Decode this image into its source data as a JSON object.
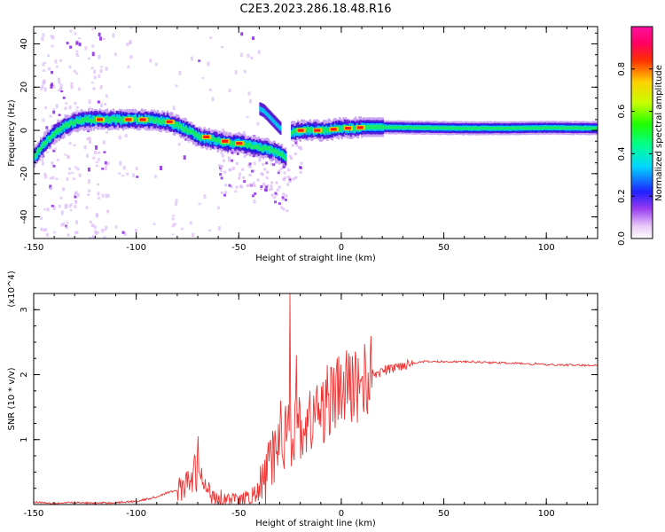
{
  "title": "C2E3.2023.286.18.48.R16",
  "colors": {
    "snr_line": "#ee3333",
    "frame": "#000000"
  },
  "chart_data": [
    {
      "type": "heatmap",
      "xlabel": "Height of straight line (km)",
      "ylabel": "Frequency (Hz)",
      "xlim": [
        -150,
        125
      ],
      "ylim": [
        -50,
        48
      ],
      "x_ticks": [
        "-150",
        "-100",
        "-50",
        "0",
        "50",
        "100"
      ],
      "y_ticks": [
        "-40",
        "-20",
        "0",
        "20",
        "40"
      ],
      "colorbar": {
        "label": "Normalized spectral amplitude",
        "range": [
          0,
          1
        ],
        "ticks": [
          "0.0",
          "0.2",
          "0.4",
          "0.6",
          "0.8"
        ]
      },
      "ridge": {
        "x": [
          -150,
          -145,
          -140,
          -135,
          -130,
          -125,
          -120,
          -115,
          -110,
          -105,
          -100,
          -95,
          -90,
          -85,
          -80,
          -75,
          -70,
          -65,
          -60,
          -55,
          -50,
          -45,
          -40,
          -35,
          -30,
          -27,
          -25,
          -20,
          -15,
          -10,
          -5,
          0,
          5,
          10,
          20,
          40,
          60,
          80,
          100,
          125
        ],
        "y": [
          -12,
          -6,
          -1,
          2,
          4,
          5,
          5,
          5,
          5,
          5,
          5,
          5,
          4.5,
          4,
          2,
          0,
          -3,
          -4,
          -5,
          -6,
          -6,
          -7,
          -8,
          -9,
          -11,
          -13,
          -1,
          0,
          0,
          0,
          0.5,
          1,
          1,
          1.5,
          1.5,
          1.2,
          1,
          1,
          1.2,
          1
        ]
      },
      "branch": {
        "x": [
          -40,
          -38,
          -35,
          -32,
          -30
        ],
        "y": [
          10,
          9,
          6,
          3,
          1
        ]
      }
    },
    {
      "type": "line",
      "xlabel": "Height of straight line (km)",
      "ylabel": "SNR (10 * v/v)",
      "y_multiplier": "(x10^4)",
      "xlim": [
        -150,
        125
      ],
      "ylim": [
        0,
        3.25
      ],
      "x_ticks": [
        "-150",
        "-100",
        "-50",
        "0",
        "50",
        "100"
      ],
      "y_ticks": [
        "1",
        "2",
        "3"
      ],
      "series": [
        {
          "name": "SNR",
          "x": [
            -150,
            -140,
            -130,
            -120,
            -110,
            -100,
            -95,
            -90,
            -85,
            -80,
            -75,
            -72,
            -70,
            -68,
            -65,
            -60,
            -55,
            -50,
            -45,
            -40,
            -37,
            -35,
            -32,
            -30,
            -28,
            -26,
            -24,
            -22,
            -20,
            -18,
            -15,
            -12,
            -10,
            -7,
            -5,
            -2,
            0,
            5,
            10,
            15,
            20,
            25,
            30,
            35,
            40,
            45,
            50,
            60,
            70,
            80,
            90,
            93,
            95,
            97,
            100,
            110,
            120,
            125
          ],
          "y": [
            0.04,
            0.02,
            0.03,
            0.02,
            0.03,
            0.05,
            0.08,
            0.12,
            0.18,
            0.22,
            0.3,
            0.45,
            0.55,
            0.35,
            0.2,
            0.12,
            0.08,
            0.06,
            0.1,
            0.2,
            0.4,
            0.6,
            0.8,
            1.2,
            0.9,
            1.6,
            1.0,
            1.2,
            1.25,
            1.1,
            1.3,
            1.45,
            1.4,
            1.55,
            1.6,
            1.7,
            1.75,
            1.82,
            1.9,
            2.0,
            2.05,
            2.1,
            2.15,
            2.18,
            2.2,
            2.2,
            2.2,
            2.2,
            2.19,
            2.18,
            2.17,
            2.15,
            2.18,
            2.16,
            2.15,
            2.15,
            2.14,
            2.15
          ]
        }
      ],
      "peaks": [
        {
          "x": -70,
          "y": 1.05
        },
        {
          "x": -25,
          "y": 3.25
        },
        {
          "x": -22,
          "y": 2.3
        },
        {
          "x": -7,
          "y": 2.15
        },
        {
          "x": 10,
          "y": 1.95
        }
      ]
    }
  ]
}
